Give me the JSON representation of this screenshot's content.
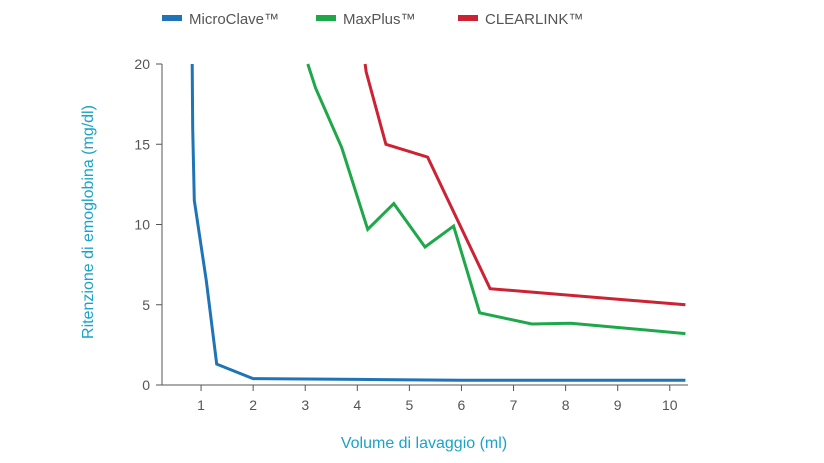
{
  "chart_data": {
    "type": "line",
    "xlabel": "Volume di lavaggio (ml)",
    "ylabel": "Ritenzione di emoglobina (mg/dl)",
    "xlim": [
      0.25,
      10.35
    ],
    "ylim": [
      0,
      20
    ],
    "xticks": [
      1,
      2,
      3,
      4,
      5,
      6,
      7,
      8,
      9,
      10
    ],
    "yticks": [
      0,
      5,
      10,
      15,
      20
    ],
    "grid": false,
    "legend_position": "top",
    "axis_color": "#555555",
    "series": [
      {
        "name": "MicroClave™",
        "color": "#1f74b8",
        "x": [
          0.83,
          0.84,
          0.87,
          1.1,
          1.3,
          2.0,
          4.0,
          6.0,
          8.0,
          10.3
        ],
        "y": [
          20,
          16,
          11.5,
          6.5,
          1.3,
          0.4,
          0.35,
          0.3,
          0.3,
          0.3
        ]
      },
      {
        "name": "MaxPlus™",
        "color": "#1ea84a",
        "x": [
          3.05,
          3.2,
          3.7,
          4.2,
          4.7,
          5.3,
          5.85,
          6.35,
          7.35,
          8.1,
          10.3
        ],
        "y": [
          20,
          18.5,
          14.8,
          9.7,
          11.3,
          8.6,
          9.9,
          4.5,
          3.8,
          3.85,
          3.2
        ]
      },
      {
        "name": "CLEARLINK™",
        "color": "#cc2233",
        "x": [
          4.15,
          4.17,
          4.55,
          5.35,
          6.55,
          10.3
        ],
        "y": [
          20,
          19.5,
          15.0,
          14.2,
          6.0,
          5.0
        ]
      }
    ]
  }
}
